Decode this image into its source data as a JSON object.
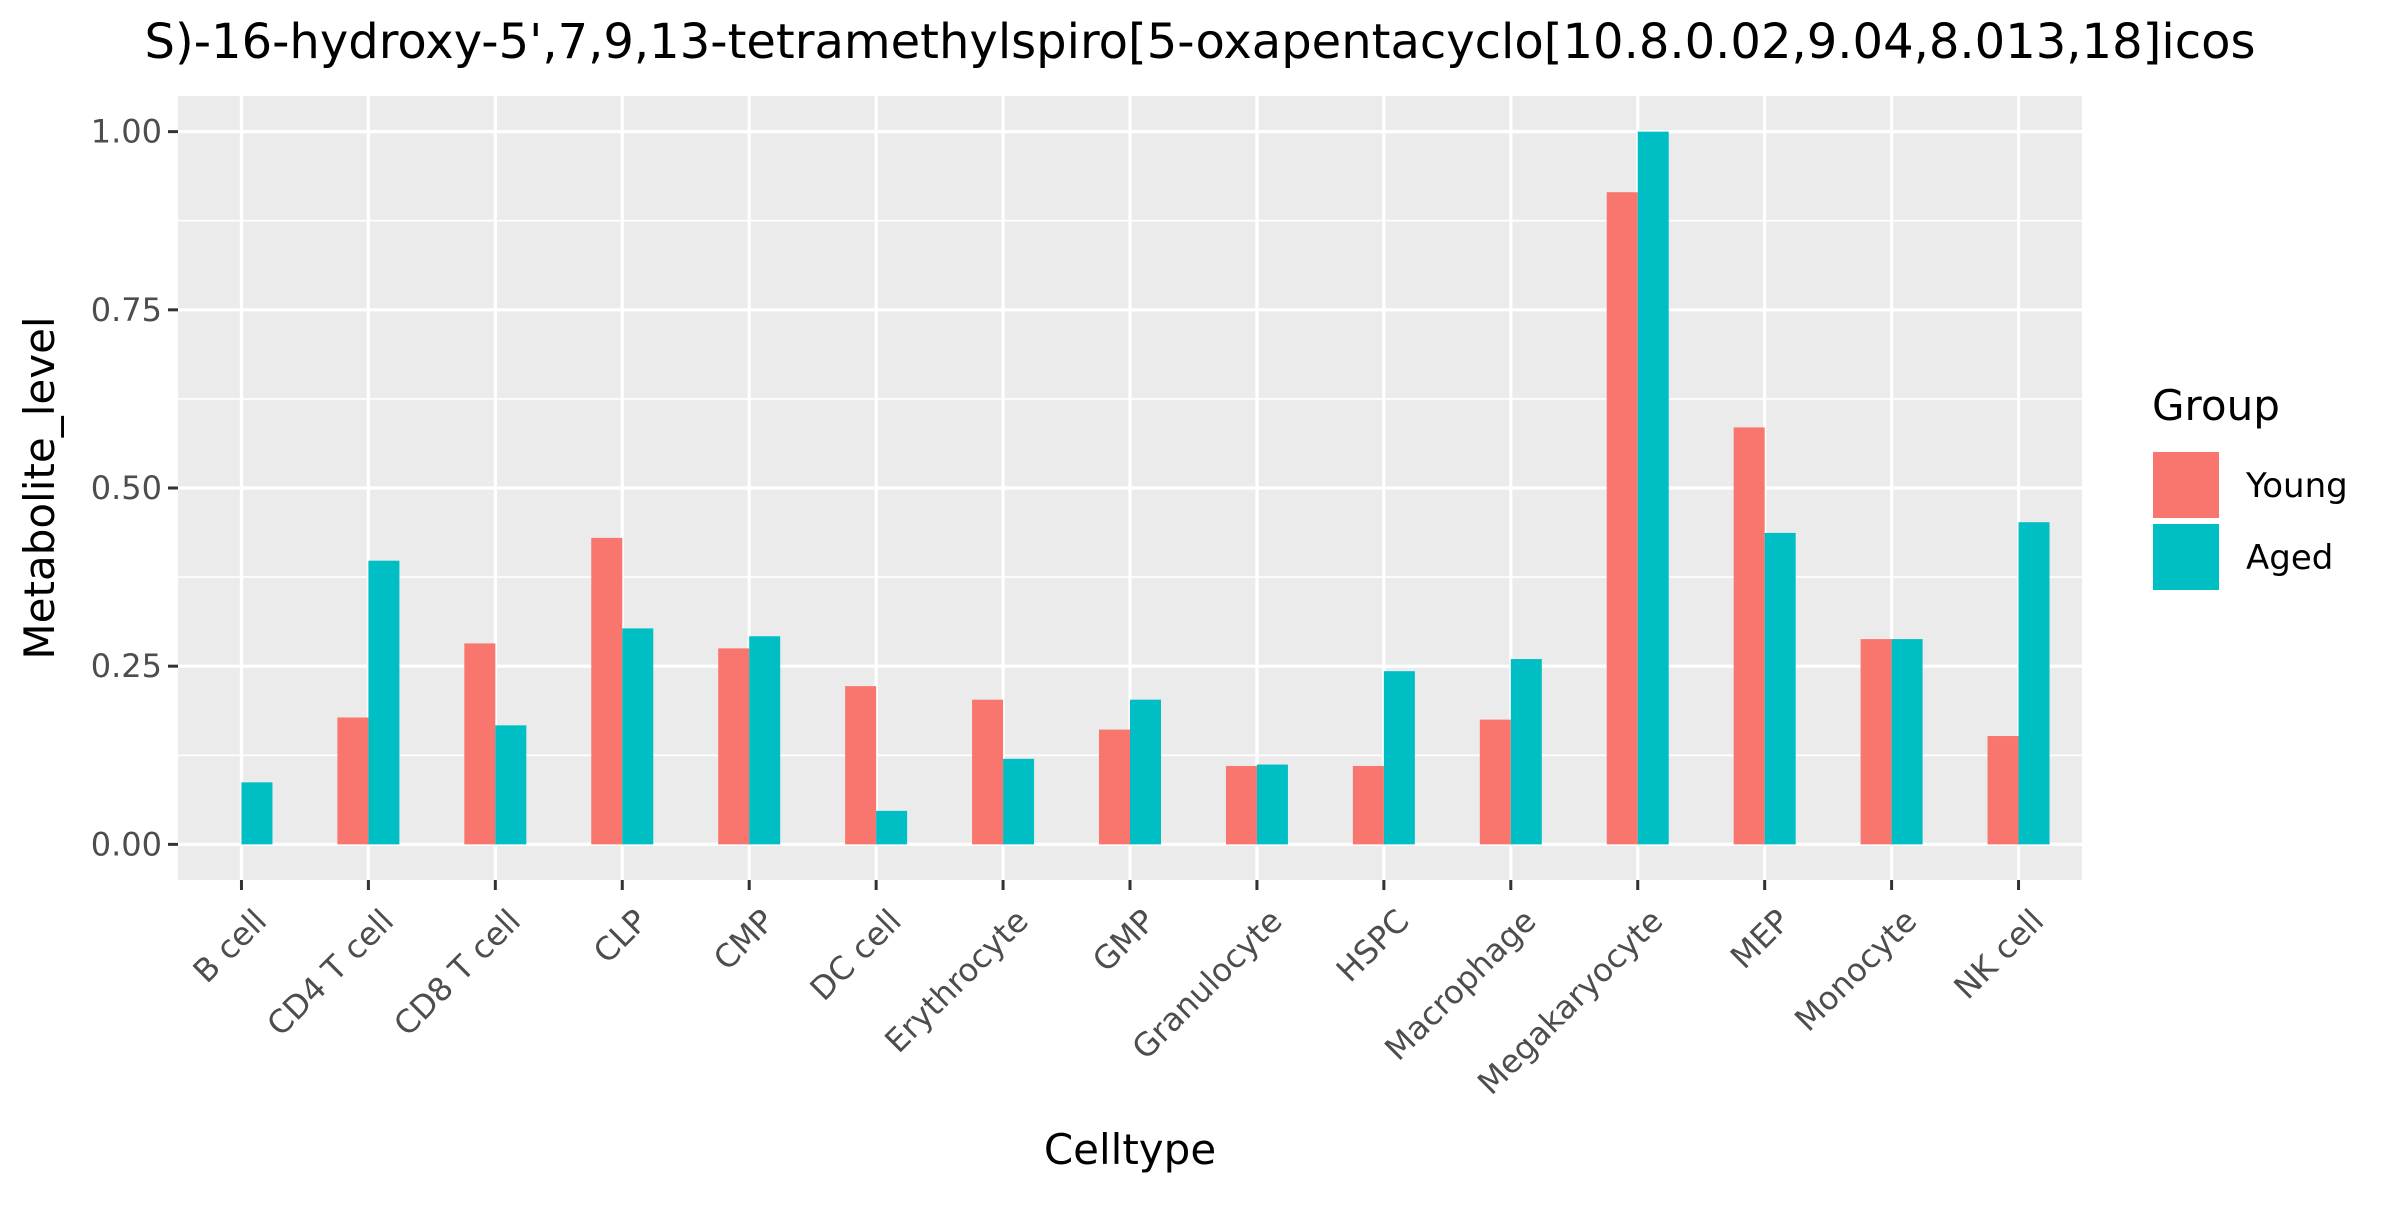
{
  "chart_data": {
    "type": "bar",
    "title": "S)-16-hydroxy-5',7,9,13-tetramethylspiro[5-oxapentacyclo[10.8.0.02,9.04,8.013,18]icos",
    "xlabel": "Celltype",
    "ylabel": "Metabolite_level",
    "ylim": [
      -0.05,
      1.05
    ],
    "yticks": [
      0.0,
      0.25,
      0.5,
      0.75,
      1.0
    ],
    "ytick_labels": [
      "0.00",
      "0.25",
      "0.50",
      "0.75",
      "1.00"
    ],
    "grid": true,
    "legend": {
      "title": "Group",
      "position": "right"
    },
    "categories": [
      "B cell",
      "CD4 T cell",
      "CD8 T cell",
      "CLP",
      "CMP",
      "DC cell",
      "Erythrocyte",
      "GMP",
      "Granulocyte",
      "HSPC",
      "Macrophage",
      "Megakaryocyte",
      "MEP",
      "Monocyte",
      "NK cell"
    ],
    "series": [
      {
        "name": "Young",
        "color": "#F8766D",
        "values": [
          0.0,
          0.178,
          0.282,
          0.43,
          0.275,
          0.222,
          0.203,
          0.161,
          0.11,
          0.11,
          0.175,
          0.915,
          0.585,
          0.288,
          0.152
        ]
      },
      {
        "name": "Aged",
        "color": "#00BFC4",
        "values": [
          0.087,
          0.398,
          0.167,
          0.303,
          0.292,
          0.047,
          0.12,
          0.203,
          0.112,
          0.243,
          0.26,
          1.0,
          0.437,
          0.288,
          0.452
        ]
      }
    ]
  }
}
